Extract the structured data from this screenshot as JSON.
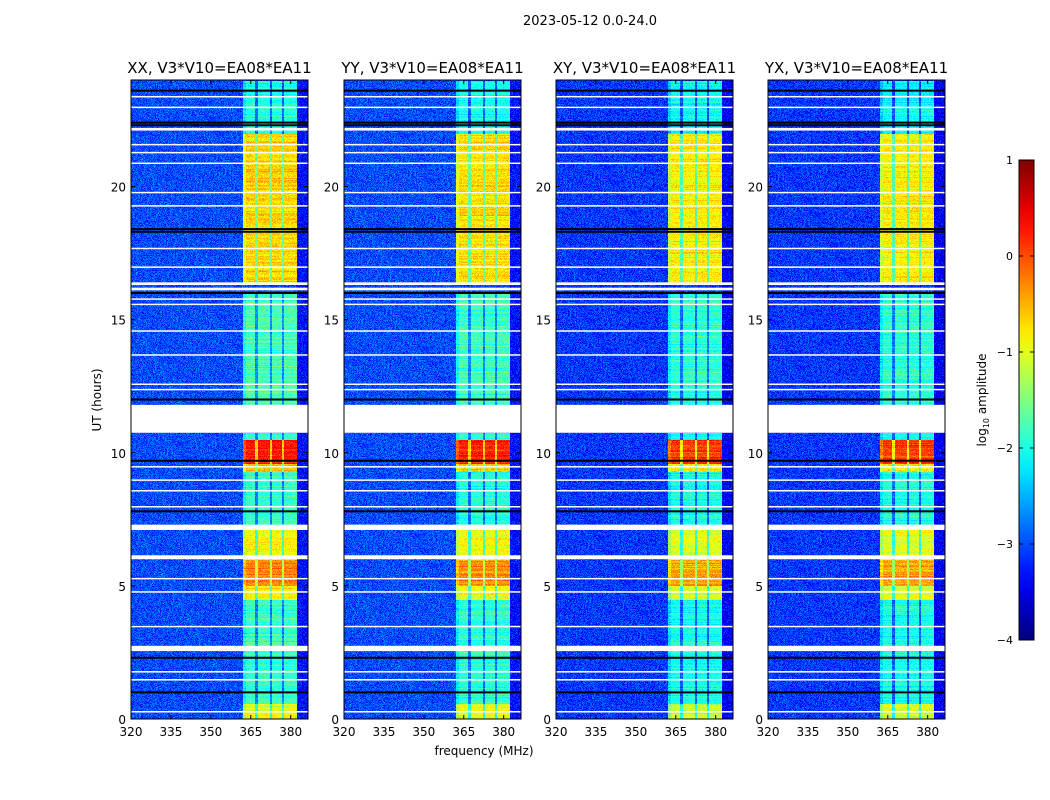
{
  "chart_data": {
    "type": "heatmap",
    "title": "2023-05-12 0.0-24.0",
    "xlabel": "frequency (MHz)",
    "ylabel": "UT (hours)",
    "xlim": [
      320,
      386.5
    ],
    "ylim": [
      0,
      24
    ],
    "xticks": [
      320,
      335,
      350,
      365,
      380
    ],
    "yticks": [
      0,
      5,
      10,
      15,
      20
    ],
    "colorbar": {
      "label": "log10 amplitude",
      "label_main": "log",
      "label_sub": "10",
      "label_rest": " amplitude",
      "range": [
        -4,
        1
      ],
      "ticks": [
        1,
        0,
        -1,
        -2,
        -3,
        -4
      ],
      "tick_labels": [
        "1",
        "0",
        "−1",
        "−2",
        "−3",
        "−4"
      ],
      "colormap": "jet"
    },
    "panels": [
      {
        "title": "XX, V3*V10=EA08*EA11",
        "band_boost": 0.15
      },
      {
        "title": "YY, V3*V10=EA08*EA11",
        "band_boost": 0.1
      },
      {
        "title": "XY, V3*V10=EA08*EA11",
        "band_boost": 0.0
      },
      {
        "title": "YX, V3*V10=EA08*EA11",
        "band_boost": 0.0
      }
    ],
    "background_level": -3.0,
    "signal_band_mhz": [
      362,
      382
    ],
    "signal_band_gaps_mhz": [
      367,
      372.5,
      377
    ],
    "time_segments": [
      {
        "t0": 0.0,
        "t1": 0.6,
        "band_level": -1.1
      },
      {
        "t0": 0.6,
        "t1": 4.5,
        "band_level": -2.0
      },
      {
        "t0": 4.5,
        "t1": 7.2,
        "band_level": -1.0
      },
      {
        "t0": 5.0,
        "t1": 6.0,
        "band_level": -0.4
      },
      {
        "t0": 7.2,
        "t1": 9.3,
        "band_level": -2.0
      },
      {
        "t0": 9.3,
        "t1": 10.5,
        "band_level": -0.7
      },
      {
        "t0": 9.6,
        "t1": 10.5,
        "band_level": 0.1
      },
      {
        "t0": 10.5,
        "t1": 10.75,
        "band_level": -2.0
      },
      {
        "t0": 11.8,
        "t1": 16.0,
        "band_level": -1.9
      },
      {
        "t0": 16.4,
        "t1": 22.0,
        "band_level": -0.8
      },
      {
        "t0": 22.0,
        "t1": 24.0,
        "band_level": -2.1
      }
    ],
    "flagged_ranges_hours": [
      [
        10.75,
        11.8
      ],
      [
        2.55,
        2.75
      ],
      [
        6.0,
        6.15
      ],
      [
        7.1,
        7.3
      ],
      [
        16.1,
        16.2
      ],
      [
        16.3,
        16.4
      ],
      [
        22.1,
        22.2
      ]
    ],
    "flagged_lines_hours": [
      0.3,
      1.5,
      1.8,
      3.5,
      4.8,
      5.3,
      8.0,
      8.6,
      9.0,
      9.5,
      12.4,
      12.6,
      13.7,
      14.6,
      15.6,
      15.8,
      17.0,
      17.7,
      19.3,
      19.8,
      20.9,
      21.3,
      21.6,
      23.0,
      23.4
    ],
    "dark_lines_hours": [
      1.0,
      2.3,
      7.8,
      9.7,
      12.0,
      16.0,
      18.3,
      18.4,
      22.3,
      22.4,
      23.6
    ]
  }
}
